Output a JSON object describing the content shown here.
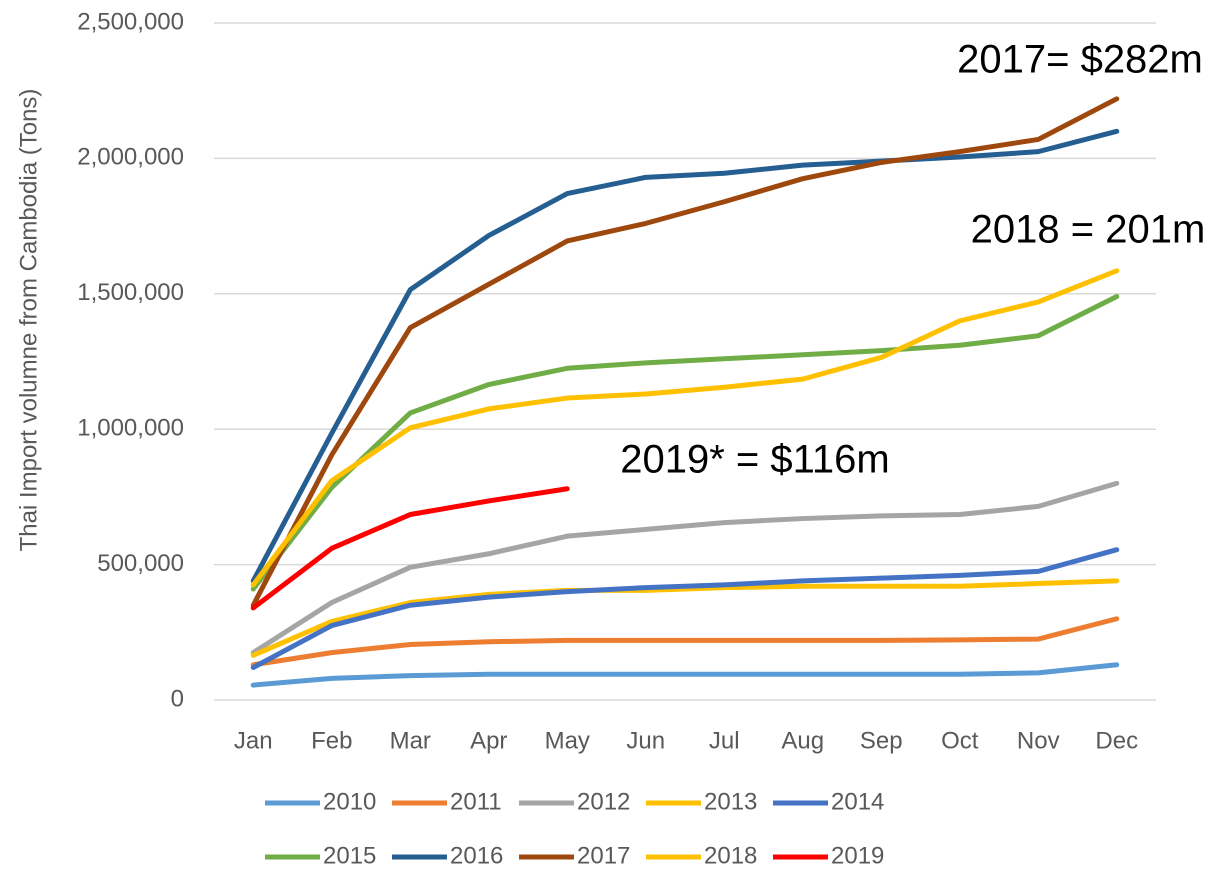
{
  "chart_data": {
    "type": "line",
    "ylabel": "Thai Import volumne from Cambodia (Tons)",
    "categories": [
      "Jan",
      "Feb",
      "Mar",
      "Apr",
      "May",
      "Jun",
      "Jul",
      "Aug",
      "Sep",
      "Oct",
      "Nov",
      "Dec"
    ],
    "ylim": [
      0,
      2500000
    ],
    "yticks": [
      0,
      {
        "value": 500000,
        "label": "500,000"
      },
      {
        "value": 1000000,
        "label": "1,000,000"
      },
      {
        "value": 1500000,
        "label": "1,500,000"
      },
      {
        "value": 2000000,
        "label": "2,000,000"
      },
      {
        "value": 2500000,
        "label": "2,500,000"
      }
    ],
    "grid": true,
    "legend": "bottom",
    "series": [
      {
        "name": "2010",
        "color": "#5b9bd5",
        "values": [
          55000,
          80000,
          90000,
          95000,
          95000,
          95000,
          95000,
          95000,
          95000,
          95000,
          100000,
          130000
        ]
      },
      {
        "name": "2011",
        "color": "#ed7d31",
        "values": [
          130000,
          175000,
          205000,
          215000,
          220000,
          220000,
          220000,
          220000,
          220000,
          222000,
          225000,
          300000
        ]
      },
      {
        "name": "2012",
        "color": "#a5a5a5",
        "values": [
          175000,
          360000,
          490000,
          540000,
          605000,
          630000,
          655000,
          670000,
          680000,
          685000,
          715000,
          800000
        ]
      },
      {
        "name": "2013",
        "color": "#ffc000",
        "values": [
          165000,
          290000,
          360000,
          390000,
          405000,
          405000,
          415000,
          420000,
          420000,
          420000,
          430000,
          440000
        ]
      },
      {
        "name": "2014",
        "color": "#4472c4",
        "values": [
          120000,
          275000,
          350000,
          380000,
          400000,
          415000,
          425000,
          440000,
          450000,
          460000,
          475000,
          555000
        ]
      },
      {
        "name": "2015",
        "color": "#70ad47",
        "values": [
          410000,
          785000,
          1060000,
          1165000,
          1225000,
          1245000,
          1260000,
          1275000,
          1290000,
          1310000,
          1345000,
          1490000
        ]
      },
      {
        "name": "2016",
        "color": "#255e91",
        "values": [
          440000,
          985000,
          1515000,
          1715000,
          1870000,
          1930000,
          1945000,
          1975000,
          1990000,
          2005000,
          2025000,
          2100000
        ]
      },
      {
        "name": "2017",
        "color": "#9e480e",
        "values": [
          350000,
          905000,
          1375000,
          1535000,
          1695000,
          1760000,
          1840000,
          1925000,
          1985000,
          2025000,
          2070000,
          2220000
        ]
      },
      {
        "name": "2018",
        "color": "#ffc000",
        "values": [
          425000,
          810000,
          1005000,
          1075000,
          1115000,
          1130000,
          1155000,
          1185000,
          1265000,
          1400000,
          1470000,
          1585000
        ]
      },
      {
        "name": "2019",
        "color": "#ff0000",
        "values": [
          340000,
          560000,
          685000,
          735000,
          780000,
          null,
          null,
          null,
          null,
          null,
          null,
          null
        ]
      }
    ],
    "annotations": [
      "2017= $282m",
      "2018 = 201m",
      "2019* = $116m"
    ]
  }
}
